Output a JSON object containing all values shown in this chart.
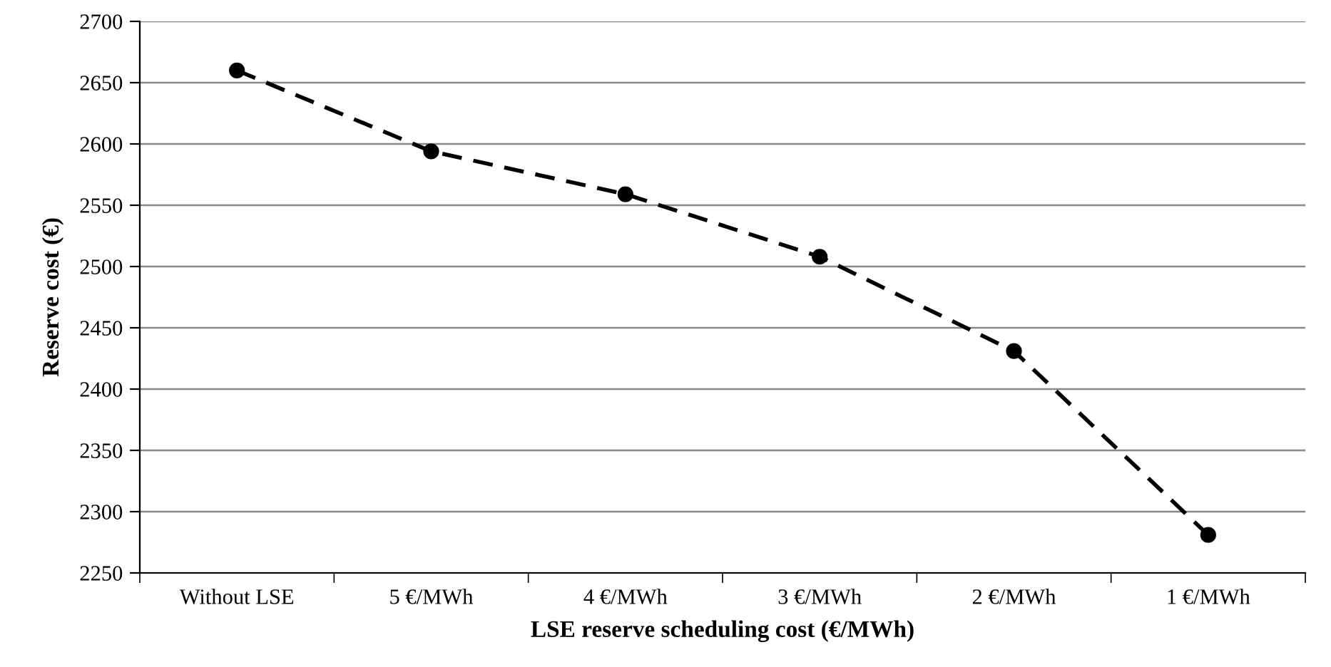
{
  "chart_data": {
    "type": "line",
    "xlabel": "LSE reserve scheduling cost (€/MWh)",
    "ylabel": "Reserve cost (€)",
    "categories": [
      "Without LSE",
      "5 €/MWh",
      "4 €/MWh",
      "3 €/MWh",
      "2 €/MWh",
      "1 €/MWh"
    ],
    "series": [
      {
        "color": "#000000",
        "values": [
          2660,
          2594,
          2559,
          2508,
          2431,
          2281
        ]
      }
    ],
    "ylim": [
      2250,
      2700
    ],
    "yticks": [
      2250,
      2300,
      2350,
      2400,
      2450,
      2500,
      2550,
      2600,
      2650,
      2700
    ],
    "grid": "y",
    "legend": false,
    "marker": "circle",
    "line_style": "dashed"
  }
}
